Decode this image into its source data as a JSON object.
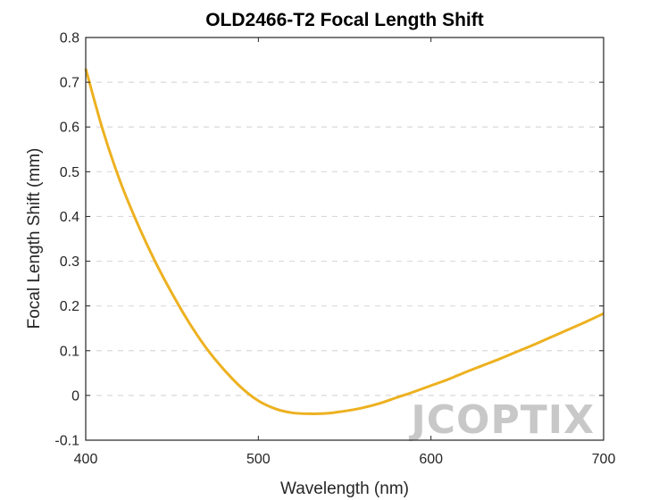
{
  "chart_data": {
    "type": "line",
    "title": "OLD2466-T2 Focal Length Shift",
    "xlabel": "Wavelength (nm)",
    "ylabel": "Focal Length Shift (mm)",
    "xlim": [
      400,
      700
    ],
    "ylim": [
      -0.1,
      0.8
    ],
    "xticks": [
      400,
      500,
      600,
      700
    ],
    "yticks": [
      -0.1,
      0,
      0.1,
      0.2,
      0.3,
      0.4,
      0.5,
      0.6,
      0.7,
      0.8
    ],
    "grid": "horizontal dashed",
    "series": [
      {
        "color": "#EDB120",
        "x": [
          400,
          410,
          420,
          430,
          440,
          450,
          460,
          470,
          480,
          490,
          500,
          510,
          520,
          530,
          540,
          550,
          560,
          570,
          580,
          590,
          600,
          610,
          620,
          630,
          640,
          650,
          660,
          670,
          680,
          690,
          700
        ],
        "y": [
          0.73,
          0.592,
          0.478,
          0.384,
          0.301,
          0.228,
          0.162,
          0.105,
          0.058,
          0.018,
          -0.012,
          -0.03,
          -0.039,
          -0.041,
          -0.04,
          -0.035,
          -0.028,
          -0.018,
          -0.005,
          0.008,
          0.022,
          0.036,
          0.052,
          0.067,
          0.082,
          0.098,
          0.114,
          0.131,
          0.148,
          0.165,
          0.183
        ]
      }
    ]
  },
  "watermark": "JCOPTIX"
}
